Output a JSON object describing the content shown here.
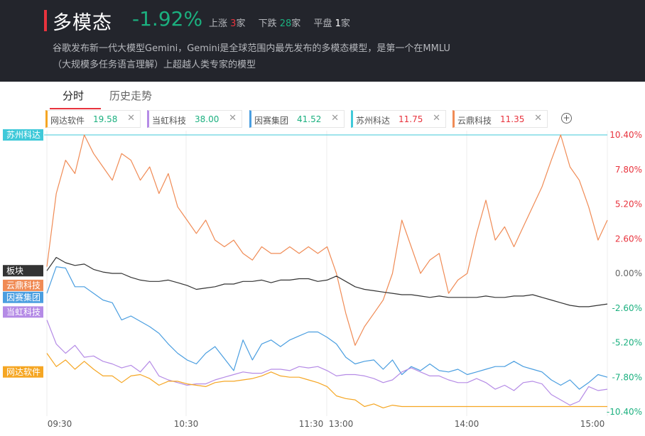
{
  "header": {
    "title": "多模态",
    "change": "-1.92%",
    "up_label": "上涨",
    "up_count": "3",
    "up_unit": "家",
    "down_label": "下跌",
    "down_count": "28",
    "down_unit": "家",
    "flat_label": "平盘",
    "flat_count": "1",
    "flat_unit": "家",
    "desc_line1": "谷歌发布新一代大模型Gemini，Gemini是全球范围内最先发布的多模态模型，是第一个在MMLU",
    "desc_line2": "（大规模多任务语言理解）上超越人类专家的模型"
  },
  "tabs": [
    {
      "label": "分时",
      "active": true
    },
    {
      "label": "历史走势",
      "active": false
    }
  ],
  "stock_tags": [
    {
      "name": "网达软件",
      "price": "19.58",
      "color": "#f5a623",
      "price_color": "#1bb07f"
    },
    {
      "name": "当虹科技",
      "price": "38.00",
      "color": "#b58be6",
      "price_color": "#1bb07f"
    },
    {
      "name": "因赛集团",
      "price": "41.52",
      "color": "#4a9ee0",
      "price_color": "#1bb07f"
    },
    {
      "name": "苏州科达",
      "price": "11.75",
      "color": "#3fc9d9",
      "price_color": "#e8333d"
    },
    {
      "name": "云鼎科技",
      "price": "11.35",
      "color": "#f08b55",
      "price_color": "#e8333d"
    }
  ],
  "add_icon": "plus-circle-icon",
  "chart_data": {
    "type": "line",
    "x_ticks": [
      "09:30",
      "10:30",
      "11:30",
      "13:00",
      "14:00",
      "15:00"
    ],
    "y_ticks": [
      "10.40%",
      "7.80%",
      "5.20%",
      "2.60%",
      "0.00%",
      "-2.60%",
      "-5.20%",
      "-7.80%",
      "-10.40%"
    ],
    "ylim": [
      -10.4,
      10.4
    ],
    "grid": "vertical",
    "reference_line": {
      "name": "苏州科达",
      "value": 10.4,
      "color": "#3fc9d9"
    },
    "series": [
      {
        "name": "云鼎科技",
        "color": "#f08b55",
        "values": [
          0.5,
          6,
          8.5,
          7.5,
          10.4,
          9,
          8,
          7,
          9,
          8.5,
          7,
          8,
          6,
          7.5,
          5,
          4,
          3,
          4,
          2.5,
          2,
          2.5,
          1.5,
          1,
          2,
          1.5,
          1.5,
          2,
          1.5,
          2,
          1.5,
          2,
          0,
          -3,
          -5.4,
          -4,
          -3,
          -2,
          0,
          4,
          2,
          0,
          1,
          1.5,
          -1.5,
          -0.5,
          0,
          3,
          5.5,
          2.5,
          3.5,
          2,
          3.5,
          5,
          6.5,
          8.5,
          10.4,
          8,
          7,
          5,
          2.5,
          4
        ]
      },
      {
        "name": "板块",
        "color": "#333333",
        "values": [
          0.2,
          1.2,
          0.8,
          0.6,
          0.7,
          0.3,
          0.1,
          0.0,
          0.0,
          -0.3,
          -0.5,
          -0.6,
          -0.6,
          -0.5,
          -0.7,
          -0.9,
          -1.2,
          -1.1,
          -1.0,
          -0.8,
          -0.8,
          -0.6,
          -0.6,
          -0.5,
          -0.7,
          -0.5,
          -0.5,
          -0.4,
          -0.4,
          -0.6,
          -0.5,
          -0.2,
          -0.6,
          -1.0,
          -1.2,
          -1.3,
          -1.4,
          -1.5,
          -1.6,
          -1.6,
          -1.7,
          -1.8,
          -1.7,
          -1.8,
          -1.8,
          -1.8,
          -1.8,
          -1.7,
          -1.8,
          -1.8,
          -1.7,
          -1.7,
          -1.6,
          -1.8,
          -2.0,
          -2.2,
          -2.4,
          -2.5,
          -2.5,
          -2.4,
          -2.3
        ]
      },
      {
        "name": "因赛集团",
        "color": "#4a9ee0",
        "values": [
          -1.5,
          0.5,
          0.4,
          -1,
          -1,
          -1.5,
          -2,
          -2.2,
          -3.5,
          -3.2,
          -3.6,
          -4,
          -4.5,
          -5.3,
          -6,
          -6.5,
          -6.8,
          -6,
          -5.5,
          -6.4,
          -7.3,
          -5,
          -6.5,
          -5.3,
          -5,
          -5.5,
          -5,
          -4.7,
          -4.4,
          -4.4,
          -4.8,
          -5.3,
          -6.3,
          -6.8,
          -6.6,
          -6.5,
          -7.2,
          -6.5,
          -7.6,
          -7,
          -7.3,
          -6.8,
          -7.3,
          -7.4,
          -7.2,
          -7.6,
          -7.4,
          -7.2,
          -7,
          -7,
          -6.6,
          -7,
          -7.2,
          -7.4,
          -8,
          -8.4,
          -8,
          -8.7,
          -8.2,
          -7.6,
          -7.8
        ]
      },
      {
        "name": "当虹科技",
        "color": "#b58be6",
        "values": [
          -3.5,
          -5.3,
          -6,
          -5.4,
          -6.3,
          -6.2,
          -6.6,
          -6.8,
          -7.1,
          -6.9,
          -7.4,
          -6.6,
          -7.7,
          -8,
          -8.2,
          -8.4,
          -8.3,
          -8.3,
          -8,
          -7.8,
          -7.6,
          -7.4,
          -7.5,
          -7.5,
          -7.2,
          -7.2,
          -7.3,
          -7,
          -7.1,
          -7,
          -7.3,
          -7.7,
          -7.6,
          -7.6,
          -7.7,
          -7.9,
          -8.2,
          -8,
          -7.4,
          -7.1,
          -7.4,
          -7.7,
          -7.7,
          -8,
          -8.2,
          -8.2,
          -7.9,
          -8.2,
          -8.7,
          -8.4,
          -8.8,
          -8.2,
          -8.1,
          -8.3,
          -9.1,
          -9.5,
          -9.9,
          -9.6,
          -8.5,
          -8.8,
          -8.7
        ]
      },
      {
        "name": "网达软件",
        "color": "#f5a623",
        "values": [
          -6,
          -7,
          -6.5,
          -7.2,
          -6.6,
          -7.2,
          -7.7,
          -7.7,
          -8.2,
          -7.7,
          -7.6,
          -7.9,
          -8.4,
          -8.1,
          -8.1,
          -8.3,
          -8.4,
          -8.5,
          -8.2,
          -8.1,
          -8.1,
          -8,
          -7.9,
          -7.7,
          -7.4,
          -7.7,
          -7.8,
          -7.8,
          -8,
          -8.2,
          -8.5,
          -9.2,
          -9.4,
          -9.5,
          -10,
          -9.8,
          -10.1,
          -9.9,
          -10,
          -10,
          -10,
          -10,
          -10,
          -10,
          -10,
          -10,
          -10,
          -10,
          -10,
          -10,
          -10,
          -10,
          -10,
          -10,
          -10,
          -10,
          -10,
          -10,
          -10,
          -10,
          -10
        ]
      }
    ]
  },
  "side_labels": [
    {
      "text": "苏州科达",
      "color": "#3fc9d9",
      "value": 10.4
    },
    {
      "text": "板块",
      "color": "#333333",
      "value": 0.2
    },
    {
      "text": "云鼎科技",
      "color": "#f08b55",
      "value": -0.9
    },
    {
      "text": "因赛集团",
      "color": "#4a9ee0",
      "value": -1.8
    },
    {
      "text": "当虹科技",
      "color": "#b58be6",
      "value": -2.9
    },
    {
      "text": "网达软件",
      "color": "#f5a623",
      "value": -7.4
    }
  ]
}
